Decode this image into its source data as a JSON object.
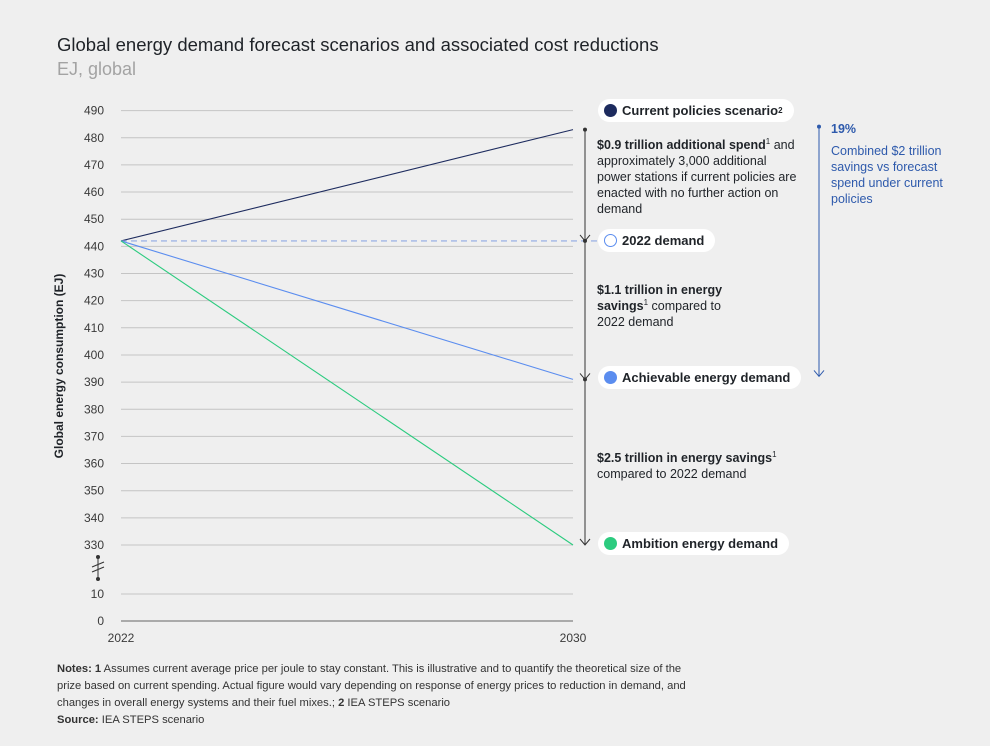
{
  "header": {
    "title": "Global energy demand forecast scenarios and associated cost reductions",
    "subtitle": "EJ, global"
  },
  "chart_data": {
    "type": "line",
    "title": "Global energy demand forecast scenarios and associated cost reductions",
    "subtitle": "EJ, global",
    "xlabel": "",
    "ylabel": "Global energy consumption (EJ)",
    "x": [
      "2022",
      "2030"
    ],
    "y_ticks_upper": [
      330,
      340,
      350,
      360,
      370,
      380,
      390,
      400,
      410,
      420,
      430,
      440,
      450,
      460,
      470,
      480,
      490
    ],
    "y_ticks_lower": [
      0,
      10
    ],
    "y_axis_break": true,
    "ylim": [
      330,
      490
    ],
    "grid": true,
    "series": [
      {
        "name": "Current policies scenario",
        "values": [
          442,
          483
        ],
        "color": "#1d2b5e",
        "style": "solid"
      },
      {
        "name": "2022 demand",
        "values": [
          442,
          442
        ],
        "color": "#8fa9e3",
        "style": "dashed"
      },
      {
        "name": "Achievable energy demand",
        "values": [
          442,
          391
        ],
        "color": "#5b8def",
        "style": "solid"
      },
      {
        "name": "Ambition energy demand",
        "values": [
          442,
          330
        ],
        "color": "#2ccb7f",
        "style": "solid"
      }
    ],
    "legend_placement": "right, inline at line ends",
    "annotations": [
      {
        "bold": "$0.9 trillion additional spend",
        "sup": "1",
        "text": "and approximately 3,000 additional power stations if current policies are enacted with no further action on demand"
      },
      {
        "bold": "$1.1 trillion in energy savings",
        "sup": "1",
        "text": "compared to 2022 demand"
      },
      {
        "bold": "$2.5 trillion in energy savings",
        "sup": "1",
        "text": "compared to 2022 demand"
      }
    ],
    "side_note": {
      "value": "19%",
      "text": "Combined $2 trillion savings vs forecast spend under current policies",
      "color": "#2e5aac"
    }
  },
  "legend": {
    "current_policies": {
      "label": "Current policies scenario",
      "sup": "2"
    },
    "demand_2022": {
      "label": "2022 demand"
    },
    "achievable": {
      "label": "Achievable energy demand"
    },
    "ambition": {
      "label": "Ambition energy demand"
    }
  },
  "notes": {
    "label": "Notes:",
    "n1": "1",
    "text1": "Assumes current average price per joule to stay constant. This is illustrative and to quantify the theoretical size of the prize based on current spending. Actual figure would vary depending on response of energy prices to reduction in demand, and changes in overall energy systems and their fuel mixes.;",
    "n2": "2",
    "text2": "IEA STEPS scenario",
    "source_label": "Source:",
    "source_text": "IEA STEPS scenario"
  }
}
